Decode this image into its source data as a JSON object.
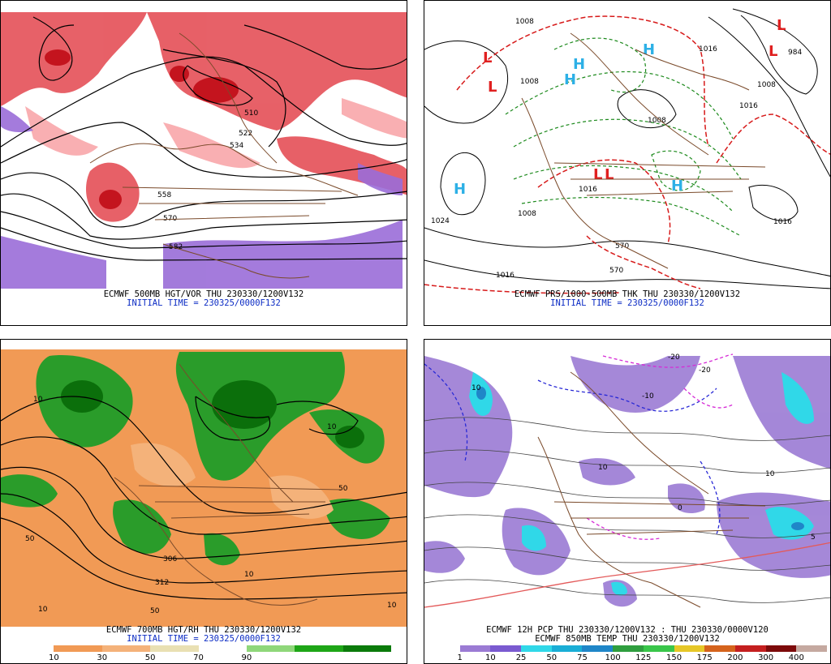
{
  "panels": [
    {
      "title": "ECMWF 500MB HGT/VOR THU 230330/1200V132",
      "init": "INITIAL TIME = 230325/0000F132",
      "contour_labels": [
        "510",
        "522",
        "534",
        "558",
        "570",
        "582"
      ]
    },
    {
      "title": "ECMWF PRS/1000-500MB THK THU 230330/1200V132",
      "init": "INITIAL TIME = 230325/0000F132",
      "pressure_labels": [
        "1008",
        "1008",
        "1016",
        "984",
        "1008",
        "1016",
        "1024",
        "1008",
        "1016",
        "1016",
        "1008",
        "1016",
        "570",
        "570"
      ],
      "centers": [
        "L",
        "L",
        "H",
        "H",
        "H",
        "H",
        "L",
        "L",
        "H",
        "L",
        "L"
      ]
    },
    {
      "title": "ECMWF 700MB HGT/RH THU 230330/1200V132",
      "init": "INITIAL TIME = 230325/0000F132",
      "legend": {
        "ticks": [
          "10",
          "30",
          "50",
          "70",
          "90"
        ],
        "colors": [
          "#ffffff",
          "#f19a55",
          "#f4b27a",
          "#e9e0b3",
          "#ffffff",
          "#8fd77a",
          "#1ea617",
          "#0b7b0b"
        ]
      },
      "contour_labels": [
        "10",
        "10",
        "50",
        "50",
        "10",
        "10",
        "312",
        "306",
        "10",
        "50"
      ]
    },
    {
      "title": "ECMWF 12H PCP THU 230330/1200V132 : THU 230330/0000V120",
      "init": "ECMWF 850MB TEMP THU 230330/1200V132",
      "legend": {
        "ticks": [
          "1",
          "10",
          "25",
          "50",
          "75",
          "100",
          "125",
          "150",
          "175",
          "200",
          "300",
          "400"
        ],
        "colors": [
          "#ffffff",
          "#9b7bd4",
          "#7a5ad0",
          "#30d8e8",
          "#1aaed6",
          "#1f86c8",
          "#2f9e3f",
          "#39c64a",
          "#e6c727",
          "#d5631c",
          "#c41f1f",
          "#7d0b0b",
          "#c5a9a0"
        ]
      },
      "contour_labels": [
        "10",
        "10",
        "0",
        "-10",
        "-20",
        "-20",
        "5",
        "10"
      ]
    }
  ]
}
